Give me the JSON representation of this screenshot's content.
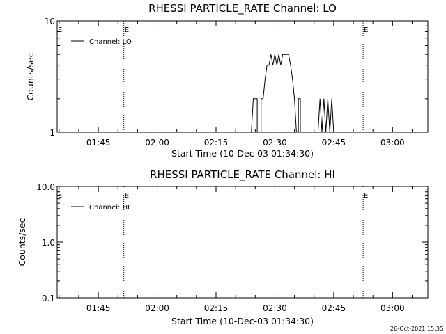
{
  "chart_data": [
    {
      "type": "line",
      "title": "RHESSI PARTICLE_RATE Channel: LO",
      "xlabel": "Start Time (10-Dec-03 01:34:30)",
      "ylabel": "Counts/sec",
      "yscale": "log",
      "ylim": [
        1,
        10
      ],
      "xlim": [
        "01:34:30",
        "03:09:00"
      ],
      "x_tick_labels": [
        "01:45",
        "02:00",
        "02:15",
        "02:30",
        "02:45",
        "03:00"
      ],
      "y_tick_labels": [
        "1",
        "10"
      ],
      "legend": {
        "placement": "top-left",
        "entries": [
          "Channel: LO"
        ]
      },
      "markers": [
        {
          "x": "01:51:30",
          "label": "E"
        },
        {
          "x": "02:52:30",
          "label": "E"
        },
        {
          "x": "03:09:00",
          "label": ""
        }
      ],
      "edge_label": "E",
      "series": [
        {
          "name": "Channel: LO",
          "points": [
            [
              "02:24:00",
              1
            ],
            [
              "02:24:30",
              2
            ],
            [
              "02:25:30",
              2
            ],
            [
              "02:25:30",
              1
            ],
            [
              "02:26:30",
              1
            ],
            [
              "02:26:30",
              2
            ],
            [
              "02:27:00",
              2
            ],
            [
              "02:27:30",
              3
            ],
            [
              "02:28:00",
              4
            ],
            [
              "02:28:30",
              4
            ],
            [
              "02:29:00",
              5
            ],
            [
              "02:29:30",
              4
            ],
            [
              "02:30:00",
              5
            ],
            [
              "02:30:30",
              4
            ],
            [
              "02:31:00",
              5
            ],
            [
              "02:31:30",
              4
            ],
            [
              "02:32:00",
              5
            ],
            [
              "02:32:30",
              5
            ],
            [
              "02:33:00",
              5
            ],
            [
              "02:33:30",
              5
            ],
            [
              "02:34:00",
              4
            ],
            [
              "02:34:30",
              3
            ],
            [
              "02:35:00",
              2
            ],
            [
              "02:35:30",
              1
            ],
            [
              "02:36:00",
              1
            ],
            [
              "02:36:00",
              2
            ],
            [
              "02:36:30",
              2
            ],
            [
              "02:36:30",
              1
            ],
            [
              "02:40:00",
              1
            ],
            [
              "02:41:00",
              1
            ],
            [
              "02:41:30",
              2
            ],
            [
              "02:42:00",
              1
            ],
            [
              "02:42:30",
              2
            ],
            [
              "02:43:00",
              1
            ],
            [
              "02:43:30",
              2
            ],
            [
              "02:44:00",
              1
            ],
            [
              "02:44:30",
              2
            ],
            [
              "02:45:00",
              1
            ]
          ]
        }
      ]
    },
    {
      "type": "line",
      "title": "RHESSI PARTICLE_RATE Channel: HI",
      "xlabel": "Start Time (10-Dec-03 01:34:30)",
      "ylabel": "Counts/sec",
      "yscale": "log",
      "ylim": [
        0.1,
        10
      ],
      "xlim": [
        "01:34:30",
        "03:09:00"
      ],
      "x_tick_labels": [
        "01:45",
        "02:00",
        "02:15",
        "02:30",
        "02:45",
        "03:00"
      ],
      "y_tick_labels": [
        "0.1",
        "1.0",
        "10.0"
      ],
      "legend": {
        "placement": "top-left",
        "entries": [
          "Channel: HI"
        ]
      },
      "markers": [
        {
          "x": "01:51:30",
          "label": "E"
        },
        {
          "x": "02:52:30",
          "label": "E"
        },
        {
          "x": "03:09:00",
          "label": ""
        }
      ],
      "edge_label": "E",
      "series": [
        {
          "name": "Channel: HI",
          "points": []
        }
      ]
    }
  ],
  "timestamp": "26-Oct-2021 15:35"
}
